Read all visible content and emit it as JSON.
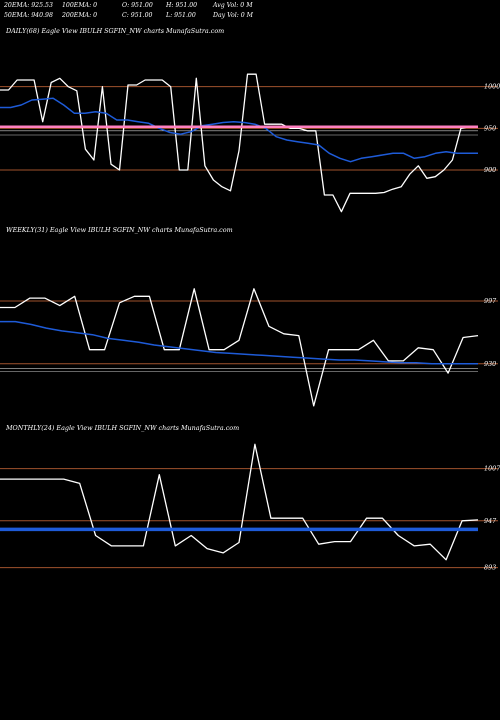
{
  "header": {
    "row1": [
      "20EMA: 925.53",
      "100EMA: 0",
      "O: 951.00",
      "H: 951.00",
      "Avg Vol: 0  M"
    ],
    "row2": [
      "50EMA: 940.98",
      "200EMA: 0",
      "C: 951.00",
      "L: 951.00",
      "Day Vol: 0  M"
    ]
  },
  "colors": {
    "background": "#000000",
    "price": "#ffffff",
    "ema": "#1e5bd8",
    "level": "#a0522d",
    "pink": "#ff80c0",
    "grey": "#cccccc"
  },
  "chart_data": [
    {
      "type": "line",
      "title": "DAILY(68) Eagle  View  IBULH              SGFIN_NW charts MunafaSutra.com",
      "yticks": [
        1000,
        950,
        900
      ],
      "ylim": [
        840,
        1020
      ],
      "series": [
        {
          "values": [
            996,
            996,
            1008,
            1008,
            1008,
            958,
            1005,
            1010,
            1000,
            995,
            925,
            912,
            1000,
            907,
            900,
            1002,
            1002,
            1008,
            1008,
            1008,
            1000,
            900,
            900,
            1010,
            905,
            888,
            880,
            875,
            923,
            1015,
            1015,
            955,
            955,
            955,
            950,
            950,
            947,
            947,
            870,
            870,
            850,
            872,
            872,
            872,
            872,
            873,
            877,
            880,
            895,
            905,
            890,
            892,
            900,
            912,
            950,
            952,
            952
          ],
          "color": "#ffffff"
        },
        {
          "values": [
            975,
            975,
            978,
            984,
            985,
            986,
            978,
            968,
            968,
            970,
            968,
            960,
            960,
            958,
            956,
            950,
            945,
            943,
            946,
            953,
            955,
            957,
            958,
            957,
            955,
            950,
            940,
            936,
            934,
            932,
            930,
            920,
            914,
            910,
            914,
            916,
            918,
            920,
            920,
            914,
            916,
            920,
            922,
            920,
            920,
            920
          ],
          "color": "#1e5bd8"
        },
        {
          "values": [
            952,
            952,
            952,
            952,
            952,
            952
          ],
          "color": "#ff80c0"
        }
      ]
    },
    {
      "type": "line",
      "title": "WEEKLY(31) Eagle  View  IBULH              SGFIN_NW charts MunafaSutra.com",
      "yticks": [
        997,
        930
      ],
      "ylim": [
        870,
        1030
      ],
      "series": [
        {
          "values": [
            990,
            990,
            1000,
            1000,
            992,
            1002,
            945,
            945,
            995,
            1002,
            1002,
            945,
            945,
            1010,
            945,
            945,
            955,
            1010,
            970,
            962,
            960,
            885,
            945,
            945,
            945,
            955,
            933,
            933,
            947,
            945,
            920,
            958,
            960
          ],
          "color": "#ffffff"
        },
        {
          "values": [
            975,
            975,
            972,
            968,
            965,
            963,
            961,
            957,
            955,
            953,
            950,
            948,
            946,
            944,
            942,
            941,
            940,
            939,
            938,
            937,
            936,
            935,
            934,
            934,
            933,
            932,
            931,
            931,
            930,
            930,
            930,
            930
          ],
          "color": "#1e5bd8"
        }
      ]
    },
    {
      "type": "line",
      "title": "MONTHLY(24) Eagle  View  IBULH              SGFIN_NW charts MunafaSutra.com",
      "yticks": [
        1007,
        947,
        893
      ],
      "ylim": [
        850,
        1040
      ],
      "series": [
        {
          "values": [
            995,
            995,
            995,
            995,
            995,
            990,
            930,
            918,
            918,
            918,
            1000,
            918,
            930,
            915,
            910,
            922,
            1035,
            950,
            950,
            950,
            920,
            923,
            923,
            950,
            950,
            930,
            918,
            920,
            902,
            947,
            948
          ],
          "color": "#ffffff"
        },
        {
          "values": [
            937,
            937,
            937,
            937,
            937,
            937,
            937,
            937,
            937,
            937,
            937,
            937,
            937,
            937,
            937,
            937,
            937,
            937,
            937,
            937,
            937,
            937,
            937,
            937,
            937,
            937,
            937,
            937,
            937,
            937
          ],
          "color": "#1e5bd8"
        }
      ]
    }
  ]
}
